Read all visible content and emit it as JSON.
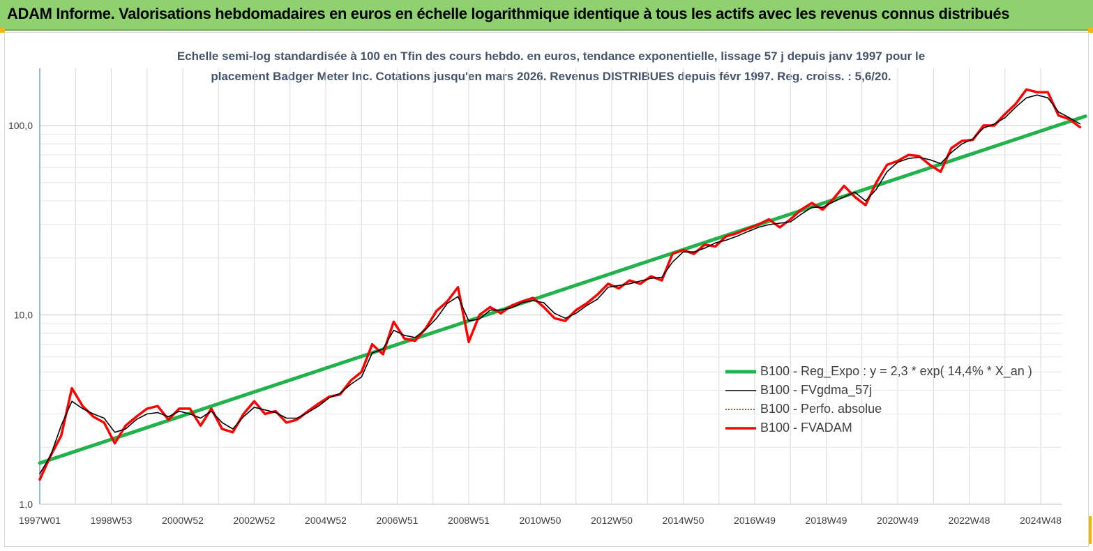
{
  "header": {
    "title": "ADAM Informe. Valorisations hebdomadaires en euros en échelle logarithmique identique à tous les actifs avec les revenus connus distribués",
    "background": "#8fd06f"
  },
  "chart_data": {
    "type": "line",
    "title": "Echelle semi-log standardisée à 100 en Tfin des cours hebdo. en euros, tendance exponentielle, lissage 57 j depuis janv 1997 pour le placement Badger Meter Inc. Cotations jusqu'en mars 2026. Revenus DISTRIBUES depuis févr 1997. Reg. croiss. : 5,6/20.",
    "title_lines": [
      "Echelle semi-log standardisée à 100 en Tfin des cours hebdo. en euros, tendance exponentielle, lissage 57 j depuis janv 1997 pour le",
      "placement Badger Meter Inc. Cotations jusqu'en mars 2026. Revenus DISTRIBUES depuis févr 1997. Reg. croiss. : 5,6/20."
    ],
    "xlabel": "",
    "ylabel": "",
    "y_scale": "log",
    "ylim": [
      1,
      190
    ],
    "xlim": [
      1997.0,
      2026.25
    ],
    "grid": true,
    "legend_position": "bottom-right",
    "x_ticks": [
      {
        "label": "1997W01",
        "x": 1997.0
      },
      {
        "label": "1998W53",
        "x": 1999.0
      },
      {
        "label": "2000W52",
        "x": 2001.0
      },
      {
        "label": "2002W52",
        "x": 2003.0
      },
      {
        "label": "2004W52",
        "x": 2005.0
      },
      {
        "label": "2006W51",
        "x": 2007.0
      },
      {
        "label": "2008W51",
        "x": 2009.0
      },
      {
        "label": "2010W50",
        "x": 2011.0
      },
      {
        "label": "2012W50",
        "x": 2013.0
      },
      {
        "label": "2014W50",
        "x": 2015.0
      },
      {
        "label": "2016W49",
        "x": 2017.0
      },
      {
        "label": "2018W49",
        "x": 2019.0
      },
      {
        "label": "2020W49",
        "x": 2021.0
      },
      {
        "label": "2022W48",
        "x": 2023.0
      },
      {
        "label": "2024W48",
        "x": 2025.0
      }
    ],
    "y_ticks": [
      {
        "label": "1,0",
        "y": 1
      },
      {
        "label": "10,0",
        "y": 10
      },
      {
        "label": "100,0",
        "y": 100
      }
    ],
    "series": [
      {
        "name": "B100 - Reg_Expo : y = 2,3 * exp( 14,4% *  X_an )",
        "color": "#22b24c",
        "style": "solid-thick",
        "x": [
          1997.0,
          2026.25
        ],
        "y": [
          1.65,
          112
        ]
      },
      {
        "name": "B100 - FVgdma_57j",
        "color": "#000000",
        "style": "solid-thin",
        "x": [
          1997.0,
          1997.3,
          1997.6,
          1997.9,
          1998.2,
          1998.5,
          1998.8,
          1999.1,
          1999.4,
          1999.7,
          2000.0,
          2000.3,
          2000.6,
          2000.9,
          2001.2,
          2001.5,
          2001.8,
          2002.1,
          2002.4,
          2002.7,
          2003.0,
          2003.3,
          2003.6,
          2003.9,
          2004.2,
          2004.5,
          2004.8,
          2005.1,
          2005.4,
          2005.7,
          2006.0,
          2006.3,
          2006.6,
          2006.9,
          2007.2,
          2007.5,
          2007.8,
          2008.1,
          2008.4,
          2008.7,
          2009.0,
          2009.3,
          2009.6,
          2009.9,
          2010.2,
          2010.5,
          2010.8,
          2011.1,
          2011.4,
          2011.7,
          2012.0,
          2012.3,
          2012.6,
          2012.9,
          2013.2,
          2013.5,
          2013.8,
          2014.1,
          2014.4,
          2014.7,
          2015.0,
          2015.3,
          2015.6,
          2015.9,
          2016.2,
          2016.5,
          2016.8,
          2017.1,
          2017.4,
          2017.7,
          2018.0,
          2018.3,
          2018.6,
          2018.9,
          2019.2,
          2019.5,
          2019.8,
          2020.1,
          2020.4,
          2020.7,
          2021.0,
          2021.3,
          2021.6,
          2021.9,
          2022.2,
          2022.5,
          2022.8,
          2023.1,
          2023.4,
          2023.7,
          2024.0,
          2024.3,
          2024.6,
          2024.9,
          2025.2,
          2025.5,
          2025.8,
          2026.1
        ],
        "y": [
          1.45,
          1.8,
          2.6,
          3.5,
          3.2,
          3.0,
          2.85,
          2.4,
          2.5,
          2.8,
          3.0,
          3.05,
          2.9,
          3.1,
          3.0,
          2.85,
          3.1,
          2.7,
          2.5,
          2.9,
          3.25,
          3.15,
          3.05,
          2.85,
          2.85,
          3.05,
          3.3,
          3.65,
          3.85,
          4.3,
          4.7,
          6.3,
          6.6,
          8.3,
          7.8,
          7.6,
          8.4,
          9.6,
          11.5,
          12.5,
          9.3,
          9.5,
          10.6,
          10.6,
          10.9,
          11.6,
          11.9,
          11.6,
          10.2,
          9.6,
          10.2,
          11.2,
          12.1,
          14.0,
          14.3,
          14.6,
          15.1,
          15.6,
          15.8,
          19.0,
          21.5,
          21.5,
          22.5,
          24.0,
          24.8,
          26.0,
          27.5,
          29.0,
          30.0,
          30.5,
          31.0,
          34.0,
          37.0,
          37.0,
          39.5,
          42.0,
          44.5,
          40.0,
          46.0,
          57.0,
          64.0,
          67.0,
          68.0,
          66.0,
          63.0,
          72.0,
          80.0,
          85.0,
          97.0,
          102.0,
          110.0,
          125.0,
          140.0,
          145.0,
          140.0,
          118.0,
          110.0,
          102.0
        ]
      },
      {
        "name": "B100 - Perfo. absolue",
        "color": "#c00000",
        "style": "dotted",
        "x": [
          1997.0,
          1997.3,
          1997.6,
          1997.9,
          1998.2,
          1998.5,
          1998.8,
          1999.1,
          1999.4,
          1999.7,
          2000.0,
          2000.3,
          2000.6,
          2000.9,
          2001.2,
          2001.5,
          2001.8,
          2002.1,
          2002.4,
          2002.7,
          2003.0,
          2003.3,
          2003.6,
          2003.9,
          2004.2,
          2004.5,
          2004.8,
          2005.1,
          2005.4,
          2005.7,
          2006.0,
          2006.3,
          2006.6,
          2006.9,
          2007.2,
          2007.5,
          2007.8,
          2008.1,
          2008.4,
          2008.7,
          2009.0,
          2009.3,
          2009.6,
          2009.9,
          2010.2,
          2010.5,
          2010.8,
          2011.1,
          2011.4,
          2011.7,
          2012.0,
          2012.3,
          2012.6,
          2012.9,
          2013.2,
          2013.5,
          2013.8,
          2014.1,
          2014.4,
          2014.7,
          2015.0,
          2015.3,
          2015.6,
          2015.9,
          2016.2,
          2016.5,
          2016.8,
          2017.1,
          2017.4,
          2017.7,
          2018.0,
          2018.3,
          2018.6,
          2018.9,
          2019.2,
          2019.5,
          2019.8,
          2020.1,
          2020.4,
          2020.7,
          2021.0,
          2021.3,
          2021.6,
          2021.9,
          2022.2,
          2022.5,
          2022.8,
          2023.1,
          2023.4,
          2023.7,
          2024.0,
          2024.3,
          2024.6,
          2024.9,
          2025.2,
          2025.5,
          2025.8,
          2026.1
        ],
        "y": [
          1.35,
          1.8,
          2.3,
          4.1,
          3.3,
          2.9,
          2.7,
          2.1,
          2.6,
          2.9,
          3.2,
          3.3,
          2.8,
          3.2,
          3.2,
          2.6,
          3.2,
          2.5,
          2.4,
          3.0,
          3.5,
          3.0,
          3.1,
          2.7,
          2.8,
          3.1,
          3.4,
          3.7,
          3.8,
          4.5,
          5.0,
          7.0,
          6.2,
          9.2,
          7.5,
          7.3,
          8.5,
          10.5,
          11.8,
          14.0,
          7.2,
          10.0,
          11.0,
          10.2,
          11.2,
          11.8,
          12.3,
          11.0,
          9.6,
          9.3,
          10.6,
          11.5,
          12.8,
          14.6,
          13.8,
          15.2,
          14.6,
          16.0,
          15.2,
          21.0,
          22.0,
          21.0,
          23.5,
          23.0,
          26.0,
          27.0,
          28.5,
          30.0,
          32.0,
          29.0,
          32.0,
          36.0,
          39.0,
          36.0,
          41.0,
          48.0,
          42.0,
          38.0,
          50.0,
          62.0,
          65.0,
          70.0,
          69.0,
          62.0,
          57.0,
          76.0,
          83.0,
          84.0,
          100.0,
          100.0,
          115.0,
          130.0,
          155.0,
          150.0,
          150.0,
          113.0,
          108.0,
          98.0
        ]
      },
      {
        "name": "B100 - FVADAM",
        "color": "#ff0000",
        "style": "solid-thick",
        "x": [
          1997.0,
          1997.3,
          1997.6,
          1997.9,
          1998.2,
          1998.5,
          1998.8,
          1999.1,
          1999.4,
          1999.7,
          2000.0,
          2000.3,
          2000.6,
          2000.9,
          2001.2,
          2001.5,
          2001.8,
          2002.1,
          2002.4,
          2002.7,
          2003.0,
          2003.3,
          2003.6,
          2003.9,
          2004.2,
          2004.5,
          2004.8,
          2005.1,
          2005.4,
          2005.7,
          2006.0,
          2006.3,
          2006.6,
          2006.9,
          2007.2,
          2007.5,
          2007.8,
          2008.1,
          2008.4,
          2008.7,
          2009.0,
          2009.3,
          2009.6,
          2009.9,
          2010.2,
          2010.5,
          2010.8,
          2011.1,
          2011.4,
          2011.7,
          2012.0,
          2012.3,
          2012.6,
          2012.9,
          2013.2,
          2013.5,
          2013.8,
          2014.1,
          2014.4,
          2014.7,
          2015.0,
          2015.3,
          2015.6,
          2015.9,
          2016.2,
          2016.5,
          2016.8,
          2017.1,
          2017.4,
          2017.7,
          2018.0,
          2018.3,
          2018.6,
          2018.9,
          2019.2,
          2019.5,
          2019.8,
          2020.1,
          2020.4,
          2020.7,
          2021.0,
          2021.3,
          2021.6,
          2021.9,
          2022.2,
          2022.5,
          2022.8,
          2023.1,
          2023.4,
          2023.7,
          2024.0,
          2024.3,
          2024.6,
          2024.9,
          2025.2,
          2025.5,
          2025.8,
          2026.1
        ],
        "y": [
          1.35,
          1.8,
          2.3,
          4.1,
          3.3,
          2.9,
          2.7,
          2.1,
          2.6,
          2.9,
          3.2,
          3.3,
          2.8,
          3.2,
          3.2,
          2.6,
          3.2,
          2.5,
          2.4,
          3.0,
          3.5,
          3.0,
          3.1,
          2.7,
          2.8,
          3.1,
          3.4,
          3.7,
          3.8,
          4.5,
          5.0,
          7.0,
          6.2,
          9.2,
          7.5,
          7.3,
          8.5,
          10.5,
          11.8,
          14.0,
          7.2,
          10.0,
          11.0,
          10.2,
          11.2,
          11.8,
          12.3,
          11.0,
          9.6,
          9.3,
          10.6,
          11.5,
          12.8,
          14.6,
          13.8,
          15.2,
          14.6,
          16.0,
          15.2,
          21.0,
          22.0,
          21.0,
          23.5,
          23.0,
          26.0,
          27.0,
          28.5,
          30.0,
          32.0,
          29.0,
          32.0,
          36.0,
          39.0,
          36.0,
          41.0,
          48.0,
          42.0,
          38.0,
          50.0,
          62.0,
          65.0,
          70.0,
          69.0,
          62.0,
          57.0,
          76.0,
          83.0,
          84.0,
          100.0,
          100.0,
          115.0,
          130.0,
          155.0,
          150.0,
          150.0,
          113.0,
          108.0,
          98.0
        ]
      }
    ]
  }
}
